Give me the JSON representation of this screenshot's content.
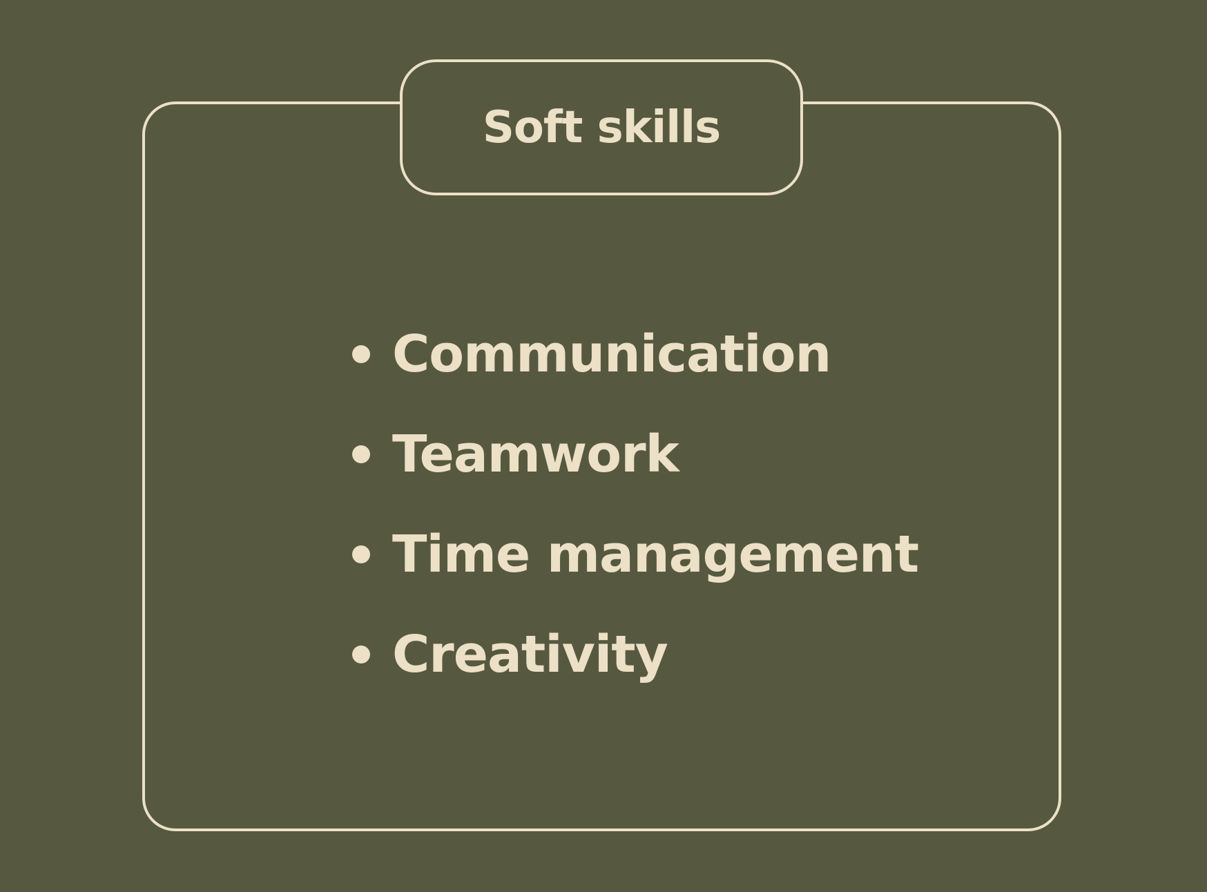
{
  "card": {
    "title": "Soft skills",
    "items": [
      {
        "label": "Communication"
      },
      {
        "label": "Teamwork"
      },
      {
        "label": "Time management"
      },
      {
        "label": "Creativity"
      }
    ]
  },
  "colors": {
    "background": "#565940",
    "foreground": "#ece0c6"
  }
}
